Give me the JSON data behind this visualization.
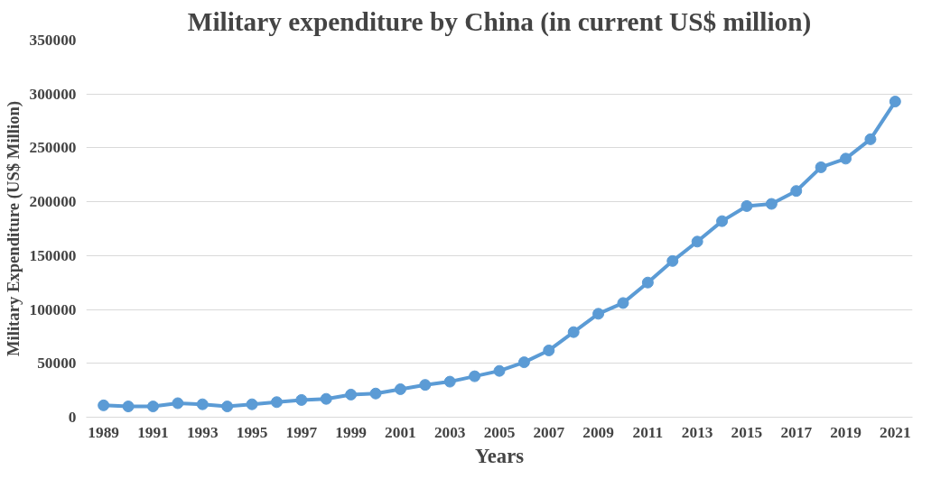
{
  "chart_data": {
    "type": "line",
    "title": "Military expenditure by China (in current US$ million)",
    "xlabel": "Years",
    "ylabel": "Military Expenditure (US$ Million)",
    "x": [
      1989,
      1990,
      1991,
      1992,
      1993,
      1994,
      1995,
      1996,
      1997,
      1998,
      1999,
      2000,
      2001,
      2002,
      2003,
      2004,
      2005,
      2006,
      2007,
      2008,
      2009,
      2010,
      2011,
      2012,
      2013,
      2014,
      2015,
      2016,
      2017,
      2018,
      2019,
      2020,
      2021
    ],
    "series": [
      {
        "color": "#5b9bd5",
        "values": [
          11000,
          10000,
          10000,
          13000,
          12000,
          10000,
          12000,
          14000,
          16000,
          17000,
          21000,
          22000,
          26000,
          30000,
          33000,
          38000,
          43000,
          51000,
          62000,
          79000,
          96000,
          106000,
          125000,
          145000,
          163000,
          182000,
          196000,
          198000,
          210000,
          232000,
          240000,
          258000,
          293000
        ]
      }
    ],
    "xlim": [
      1988.3,
      2021.7
    ],
    "xticks": [
      1989,
      1991,
      1993,
      1995,
      1997,
      1999,
      2001,
      2003,
      2005,
      2007,
      2009,
      2011,
      2013,
      2015,
      2017,
      2019,
      2021
    ],
    "ylim": [
      0,
      350000
    ],
    "yticks": [
      0,
      50000,
      100000,
      150000,
      200000,
      250000,
      300000,
      350000
    ],
    "grid": "y",
    "marker": "circle",
    "line_style": "solid"
  }
}
